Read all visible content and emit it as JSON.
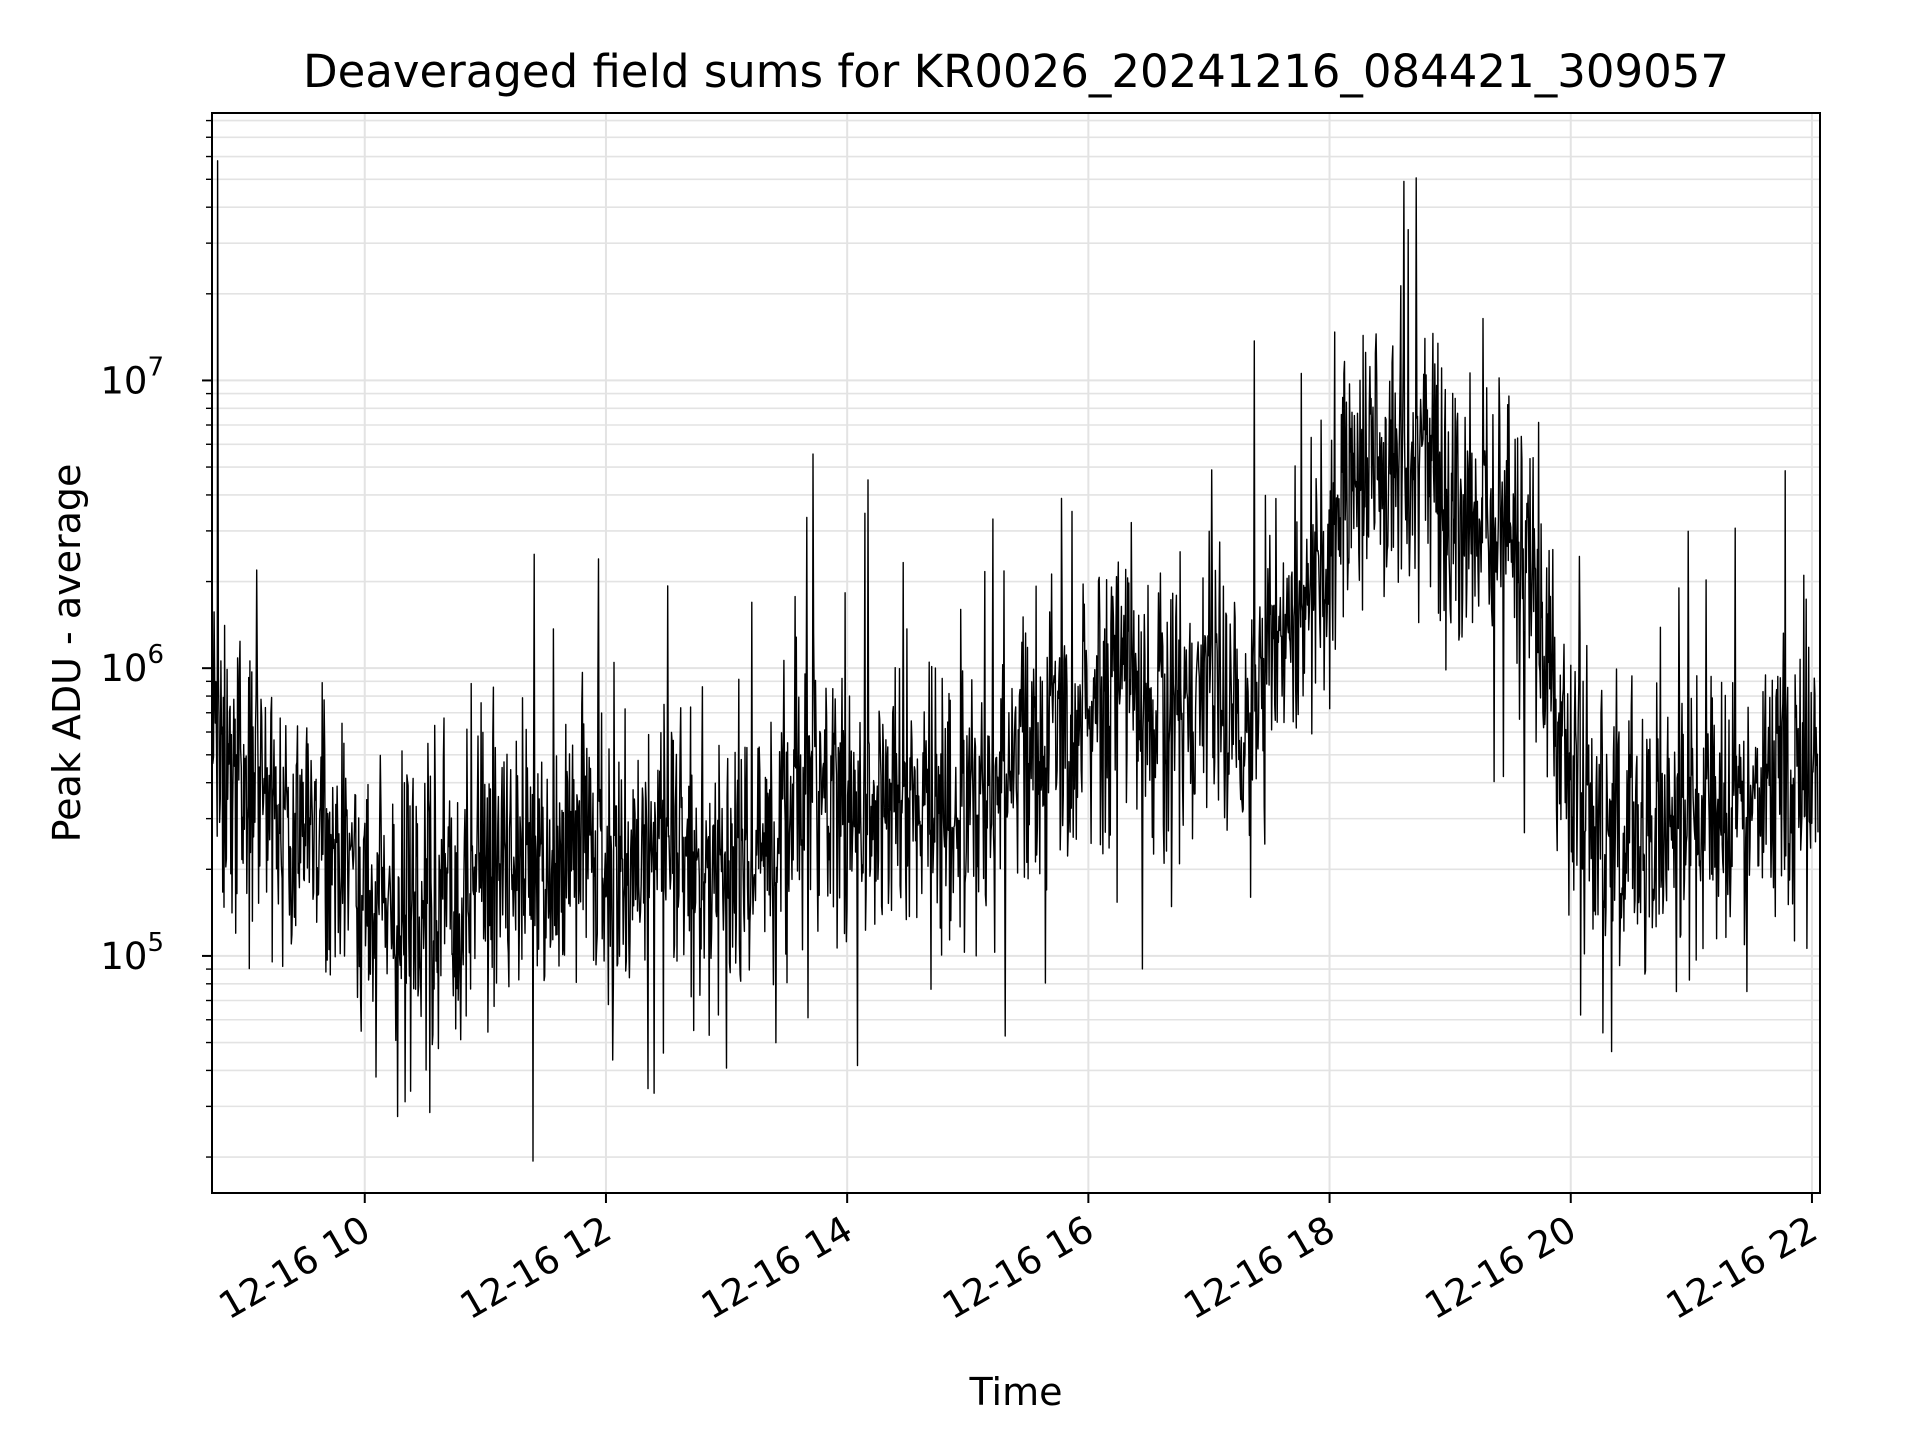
{
  "chart_data": {
    "type": "line",
    "title": "Deaveraged field sums for KR0026_20241216_084421_309057",
    "xlabel": "Time",
    "ylabel": "Peak ADU - average",
    "x_scale": "time",
    "y_scale": "log",
    "xlim": [
      "2024-12-16 08:44",
      "2024-12-16 22:04"
    ],
    "ylim": [
      15000,
      85000000
    ],
    "x_ticks": [
      "12-16 10",
      "12-16 12",
      "12-16 14",
      "12-16 16",
      "12-16 18",
      "12-16 20",
      "12-16 22"
    ],
    "y_ticks": [
      {
        "base": "10",
        "exp": "5"
      },
      {
        "base": "10",
        "exp": "6"
      },
      {
        "base": "10",
        "exp": "7"
      }
    ],
    "grid": true,
    "legend": "none",
    "series": [
      {
        "color": "#000000",
        "note_points": "x in hours of 2024-12-16 (local time), y in ADU",
        "x": [
          8.73,
          8.78,
          8.83,
          8.9,
          9.0,
          9.1,
          9.2,
          9.3,
          9.4,
          9.5,
          9.6,
          9.7,
          9.8,
          9.9,
          10.0,
          10.1,
          10.2,
          10.3,
          10.4,
          10.5,
          10.6,
          10.7,
          10.8,
          10.9,
          11.0,
          11.1,
          11.2,
          11.3,
          11.4,
          11.5,
          11.6,
          11.7,
          11.8,
          11.9,
          12.0,
          12.1,
          12.2,
          12.3,
          12.4,
          12.5,
          12.6,
          12.7,
          12.8,
          12.9,
          13.0,
          13.1,
          13.2,
          13.3,
          13.4,
          13.5,
          13.6,
          13.7,
          13.8,
          13.9,
          14.0,
          14.1,
          14.2,
          14.3,
          14.4,
          14.5,
          14.6,
          14.7,
          14.8,
          14.9,
          15.0,
          15.1,
          15.2,
          15.3,
          15.4,
          15.5,
          15.6,
          15.7,
          15.8,
          15.9,
          16.0,
          16.1,
          16.2,
          16.3,
          16.4,
          16.5,
          16.6,
          16.7,
          16.8,
          16.9,
          17.0,
          17.1,
          17.2,
          17.3,
          17.4,
          17.5,
          17.6,
          17.7,
          17.8,
          17.9,
          18.0,
          18.1,
          18.2,
          18.3,
          18.4,
          18.5,
          18.6,
          18.7,
          18.8,
          18.9,
          19.0,
          19.1,
          19.2,
          19.3,
          19.4,
          19.5,
          19.6,
          19.7,
          19.8,
          19.9,
          20.0,
          20.1,
          20.2,
          20.3,
          20.4,
          20.5,
          20.6,
          20.7,
          20.8,
          20.9,
          21.0,
          21.1,
          21.2,
          21.3,
          21.4,
          21.5,
          21.6,
          21.7,
          21.8,
          21.9,
          22.0,
          22.05
        ],
        "y": [
          500000,
          58000000,
          600000,
          450000,
          400000,
          350000,
          300000,
          320000,
          280000,
          250000,
          260000,
          230000,
          210000,
          190000,
          170000,
          160000,
          150000,
          140000,
          140000,
          150000,
          160000,
          180000,
          190000,
          200000,
          210000,
          220000,
          230000,
          240000,
          250000,
          260000,
          250000,
          240000,
          230000,
          220000,
          210000,
          200000,
          210000,
          220000,
          230000,
          240000,
          220000,
          200000,
          190000,
          200000,
          210000,
          220000,
          230000,
          240000,
          260000,
          300000,
          380000,
          450000,
          420000,
          380000,
          340000,
          300000,
          320000,
          350000,
          380000,
          400000,
          360000,
          330000,
          310000,
          300000,
          320000,
          350000,
          380000,
          420000,
          450000,
          480000,
          500000,
          520000,
          540000,
          560000,
          600000,
          700000,
          900000,
          1100000,
          900000,
          700000,
          650000,
          700000,
          800000,
          900000,
          1000000,
          800000,
          700000,
          600000,
          800000,
          1100000,
          1300000,
          1500000,
          1700000,
          2000000,
          2500000,
          3500000,
          4500000,
          5500000,
          6000000,
          5500000,
          5000000,
          5500000,
          6000000,
          5000000,
          3500000,
          2800000,
          2600000,
          3000000,
          3200000,
          2600000,
          2000000,
          1500000,
          900000,
          600000,
          450000,
          380000,
          320000,
          280000,
          250000,
          240000,
          250000,
          260000,
          270000,
          280000,
          270000,
          260000,
          280000,
          300000,
          320000,
          340000,
          360000,
          380000,
          400000,
          430000,
          470000,
          520000
        ]
      }
    ]
  }
}
